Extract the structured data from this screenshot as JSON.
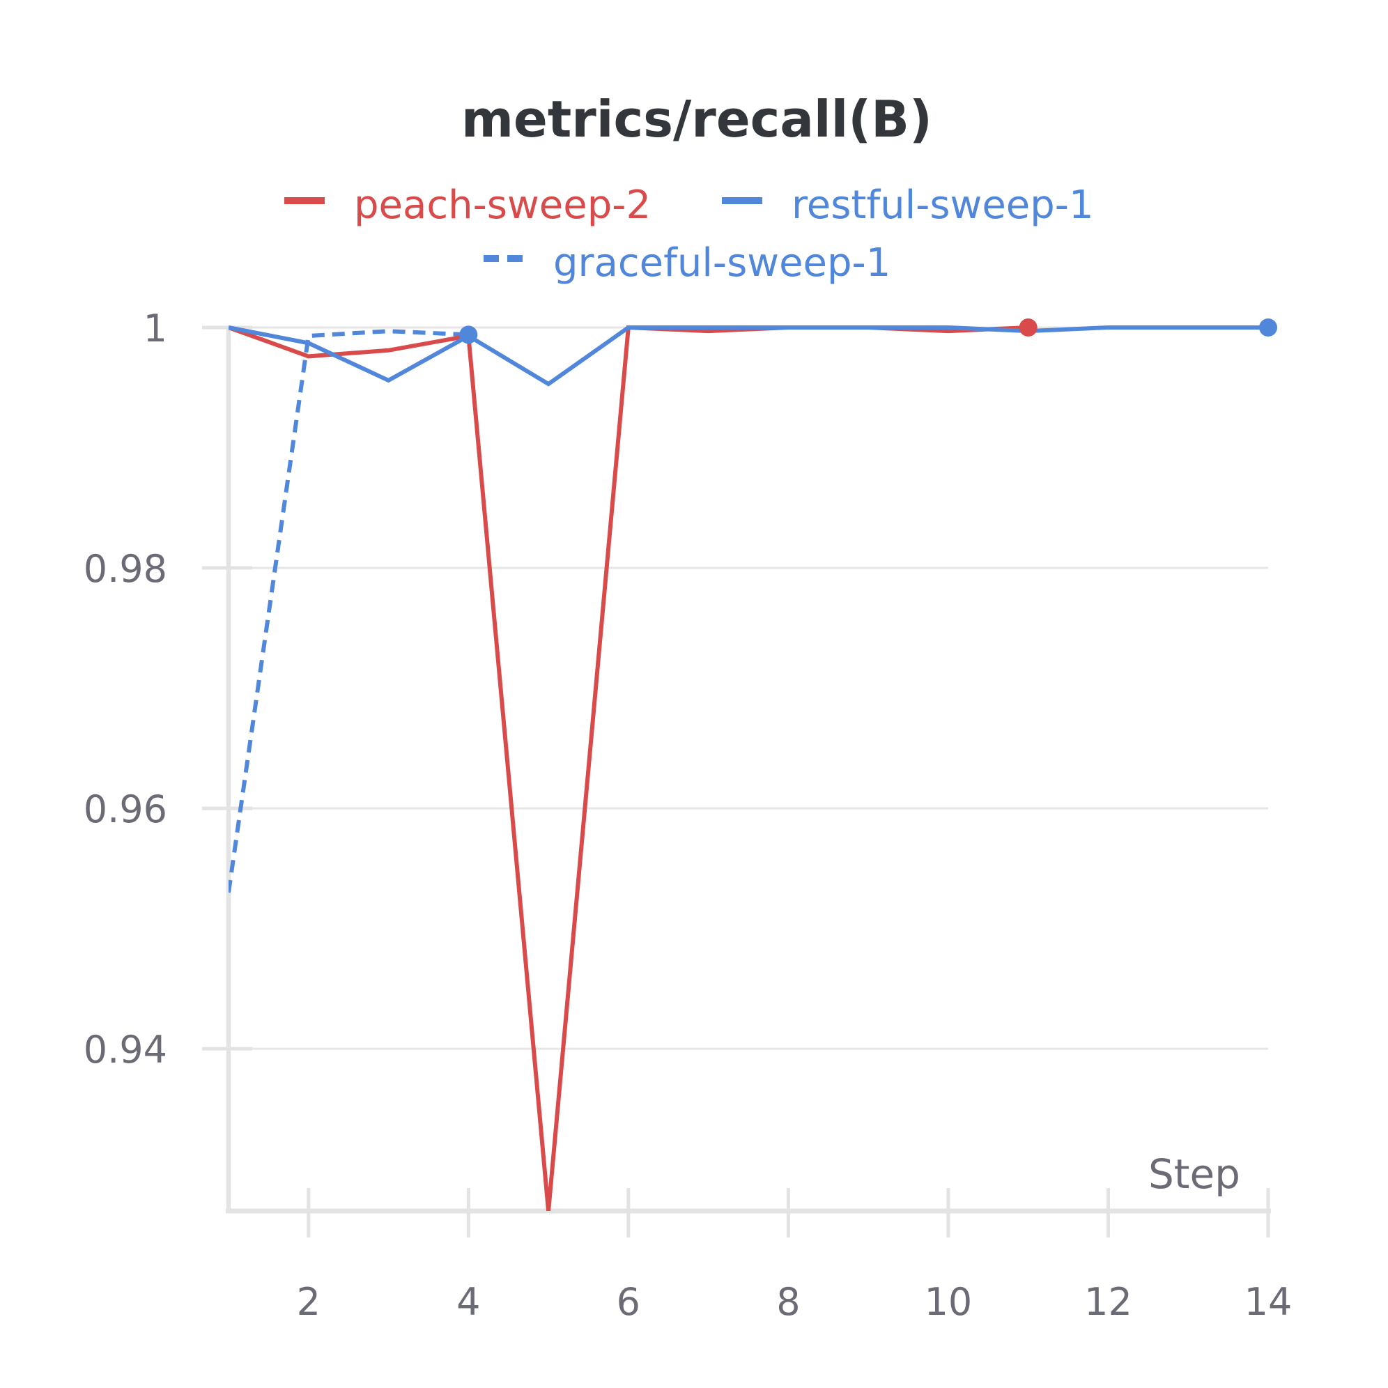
{
  "chart_data": {
    "type": "line",
    "title": "metrics/recall(B)",
    "xlabel": "Step",
    "ylabel": "",
    "xlim": [
      1,
      14
    ],
    "ylim": [
      0.9265,
      1.0
    ],
    "x_ticks": [
      2,
      4,
      6,
      8,
      10,
      12,
      14
    ],
    "y_ticks": [
      0.94,
      0.96,
      0.98,
      1
    ],
    "y_tick_labels": [
      "0.94",
      "0.96",
      "0.98",
      "1"
    ],
    "grid": true,
    "legend_position": "top",
    "series": [
      {
        "name": "peach-sweep-2",
        "color": "#d94a4a",
        "dash": false,
        "x": [
          1,
          2,
          3,
          4,
          5,
          6,
          7,
          8,
          9,
          10,
          11
        ],
        "y": [
          1.0,
          0.9976,
          0.9981,
          0.9993,
          0.9265,
          1.0,
          0.9997,
          1.0,
          1.0,
          0.9997,
          1.0
        ],
        "end_marker": true
      },
      {
        "name": "restful-sweep-1",
        "color": "#5087db",
        "dash": false,
        "x": [
          1,
          2,
          3,
          4,
          5,
          6,
          7,
          8,
          9,
          10,
          11,
          12,
          13,
          14
        ],
        "y": [
          1.0,
          0.9987,
          0.9956,
          0.9993,
          0.9953,
          1.0,
          1.0,
          1.0,
          1.0,
          1.0,
          0.9997,
          1.0,
          1.0,
          1.0
        ],
        "end_marker": true
      },
      {
        "name": "graceful-sweep-1",
        "color": "#5087db",
        "dash": true,
        "x": [
          1,
          2,
          3,
          4
        ],
        "y": [
          0.953,
          0.9993,
          0.9997,
          0.9994
        ],
        "end_marker": true
      }
    ]
  }
}
